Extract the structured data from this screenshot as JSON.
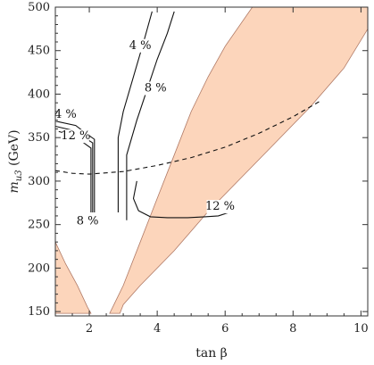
{
  "chart_data": {
    "type": "contour",
    "xlabel": "tan β",
    "ylabel_main": "m",
    "ylabel_sub": "u3",
    "ylabel_unit": " (GeV)",
    "xlim": [
      1,
      10.2
    ],
    "ylim": [
      145,
      500
    ],
    "xticks": [
      2,
      4,
      6,
      8,
      10
    ],
    "yticks": [
      150,
      200,
      250,
      300,
      350,
      400,
      450,
      500
    ],
    "excluded_color": "#fcd5bb",
    "excluded_edge_color": "#b07a66",
    "excluded_regions": [
      {
        "points": [
          [
            1.0,
            230
          ],
          [
            1.3,
            205
          ],
          [
            1.65,
            180
          ],
          [
            1.95,
            155
          ],
          [
            2.05,
            148
          ],
          [
            1.0,
            148
          ]
        ]
      },
      {
        "points": [
          [
            2.6,
            148
          ],
          [
            3.0,
            180
          ],
          [
            3.5,
            230
          ],
          [
            4.0,
            280
          ],
          [
            4.5,
            330
          ],
          [
            5.0,
            380
          ],
          [
            5.5,
            420
          ],
          [
            6.0,
            455
          ],
          [
            6.8,
            500
          ],
          [
            10.2,
            500
          ],
          [
            10.2,
            475
          ],
          [
            9.5,
            430
          ],
          [
            8.5,
            385
          ],
          [
            7.5,
            345
          ],
          [
            6.5,
            305
          ],
          [
            5.5,
            265
          ],
          [
            4.5,
            220
          ],
          [
            3.5,
            180
          ],
          [
            3.0,
            158
          ],
          [
            2.9,
            148
          ]
        ]
      }
    ],
    "dashed_curve": [
      [
        1.0,
        312
      ],
      [
        1.5,
        309
      ],
      [
        2.0,
        308
      ],
      [
        3.0,
        311
      ],
      [
        4.0,
        318
      ],
      [
        5.0,
        327
      ],
      [
        6.0,
        339
      ],
      [
        7.0,
        355
      ],
      [
        8.0,
        374
      ],
      [
        8.8,
        392
      ]
    ],
    "contours": [
      {
        "label": "4 %",
        "points": [
          [
            1.0,
            369
          ],
          [
            1.6,
            364
          ],
          [
            1.9,
            355
          ],
          [
            2.15,
            348
          ],
          [
            2.15,
            264
          ]
        ]
      },
      {
        "label": "4 %",
        "points": [
          [
            2.85,
            264
          ],
          [
            2.85,
            350
          ],
          [
            3.0,
            380
          ],
          [
            3.3,
            420
          ],
          [
            3.6,
            460
          ],
          [
            3.85,
            495
          ]
        ]
      },
      {
        "label": "8 %",
        "points": [
          [
            1.0,
            363
          ],
          [
            1.55,
            358
          ],
          [
            1.85,
            350
          ],
          [
            2.1,
            344
          ],
          [
            2.1,
            264
          ]
        ]
      },
      {
        "label": "8 %",
        "points": [
          [
            3.1,
            255
          ],
          [
            3.1,
            330
          ],
          [
            3.4,
            370
          ],
          [
            3.7,
            405
          ],
          [
            4.0,
            440
          ],
          [
            4.3,
            470
          ],
          [
            4.5,
            495
          ]
        ]
      },
      {
        "label": "12 %",
        "points": [
          [
            1.1,
            357
          ],
          [
            1.5,
            353
          ],
          [
            1.8,
            345
          ],
          [
            2.05,
            338
          ],
          [
            2.05,
            264
          ]
        ]
      },
      {
        "label": "12 %",
        "points": [
          [
            3.4,
            300
          ],
          [
            3.3,
            280
          ],
          [
            3.45,
            266
          ],
          [
            3.8,
            259
          ],
          [
            4.3,
            258
          ],
          [
            4.9,
            258
          ],
          [
            5.4,
            259
          ],
          [
            5.8,
            260
          ],
          [
            6.2,
            265
          ]
        ]
      }
    ],
    "contour_labels": [
      {
        "text": "4 %",
        "x": 1.3,
        "y": 373
      },
      {
        "text": "12 %",
        "x": 1.6,
        "y": 348
      },
      {
        "text": "8 %",
        "x": 1.95,
        "y": 250
      },
      {
        "text": "4 %",
        "x": 3.5,
        "y": 452
      },
      {
        "text": "8 %",
        "x": 3.95,
        "y": 403
      },
      {
        "text": "12 %",
        "x": 5.85,
        "y": 267
      }
    ]
  }
}
